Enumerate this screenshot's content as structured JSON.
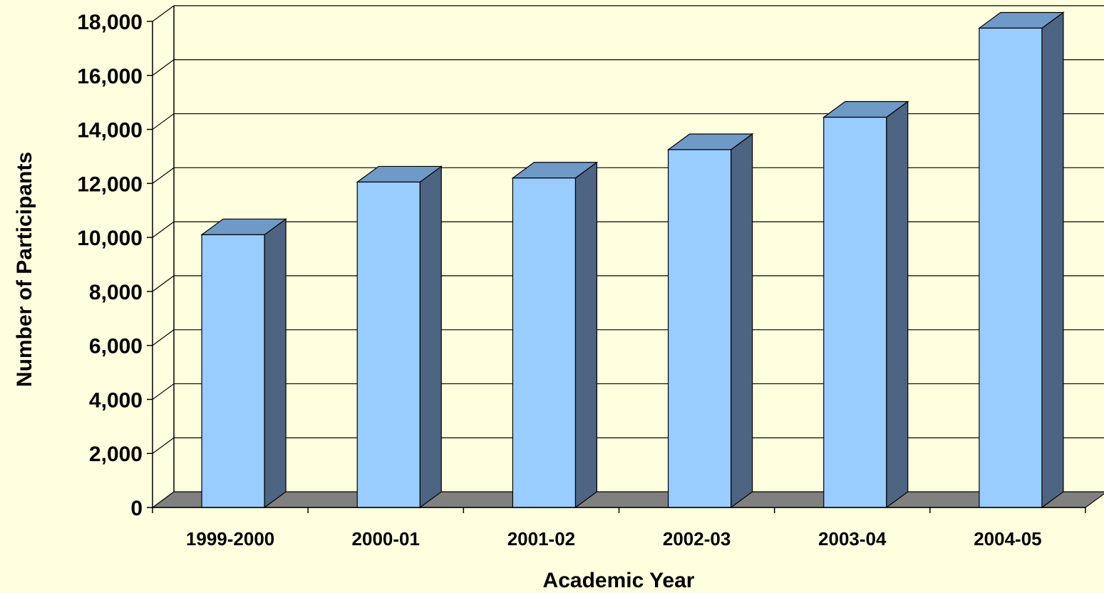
{
  "chart_data": {
    "type": "bar",
    "style": "3d-column",
    "title": "",
    "xlabel": "Academic Year",
    "ylabel": "Number of Participants",
    "categories": [
      "1999-2000",
      "2000-01",
      "2001-02",
      "2002-03",
      "2003-04",
      "2004-05"
    ],
    "values": [
      10100,
      12050,
      12200,
      13250,
      14450,
      17750
    ],
    "ylim": [
      0,
      18000
    ],
    "yticks": [
      0,
      2000,
      4000,
      6000,
      8000,
      10000,
      12000,
      14000,
      16000,
      18000
    ],
    "ytick_labels": [
      "0",
      "2,000",
      "4,000",
      "6,000",
      "8,000",
      "10,000",
      "12,000",
      "14,000",
      "16,000",
      "18,000"
    ],
    "grid": true,
    "legend": "none",
    "colors": {
      "background": "#ffffe0",
      "bar_front": "#99ccff",
      "bar_top": "#6f99c6",
      "bar_side": "#4d6482",
      "floor": "#808080",
      "gridline": "#000000"
    }
  }
}
